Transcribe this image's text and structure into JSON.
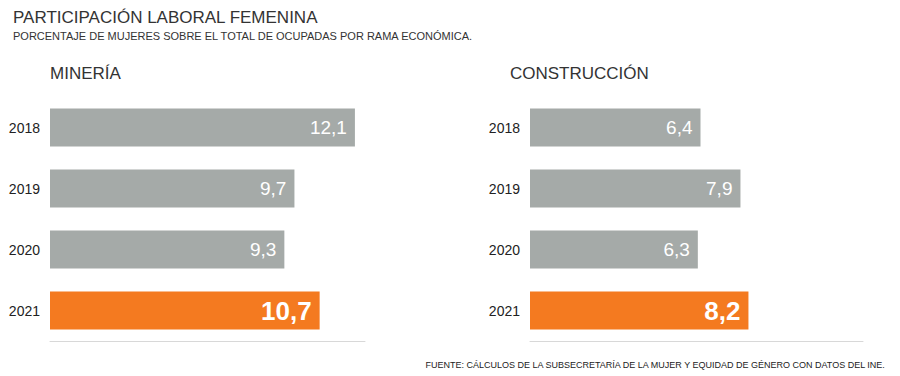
{
  "title": "PARTICIPACIÓN LABORAL FEMENINA",
  "subtitle": "PORCENTAJE DE MUJERES SOBRE EL TOTAL DE OCUPADAS POR RAMA ECONÓMICA.",
  "source": "FUENTE: CÁLCULOS DE LA SUBSECRETARÍA DE LA MUJER Y EQUIDAD DE GÉNERO CON DATOS DEL INE.",
  "chart_data": [
    {
      "type": "bar",
      "title": "MINERÍA",
      "orientation": "horizontal",
      "categories": [
        "2018",
        "2019",
        "2020",
        "2021"
      ],
      "values": [
        12.1,
        9.7,
        9.3,
        10.7
      ],
      "value_labels": [
        "12,1",
        "9,7",
        "9,3",
        "10,7"
      ],
      "colors": [
        "#a5aaa8",
        "#a5aaa8",
        "#a5aaa8",
        "#f47a20"
      ],
      "xlim": [
        0,
        12.5
      ],
      "data_labels": true,
      "tick_labels": "y",
      "grid": false
    },
    {
      "type": "bar",
      "title": "CONSTRUCCIÓN",
      "orientation": "horizontal",
      "categories": [
        "2018",
        "2019",
        "2020",
        "2021"
      ],
      "values": [
        6.4,
        7.9,
        6.3,
        8.2
      ],
      "value_labels": [
        "6,4",
        "7,9",
        "6,3",
        "8,2"
      ],
      "colors": [
        "#a5aaa8",
        "#a5aaa8",
        "#a5aaa8",
        "#f47a20"
      ],
      "xlim": [
        0,
        12.5
      ],
      "data_labels": true,
      "tick_labels": "y",
      "grid": false
    }
  ]
}
